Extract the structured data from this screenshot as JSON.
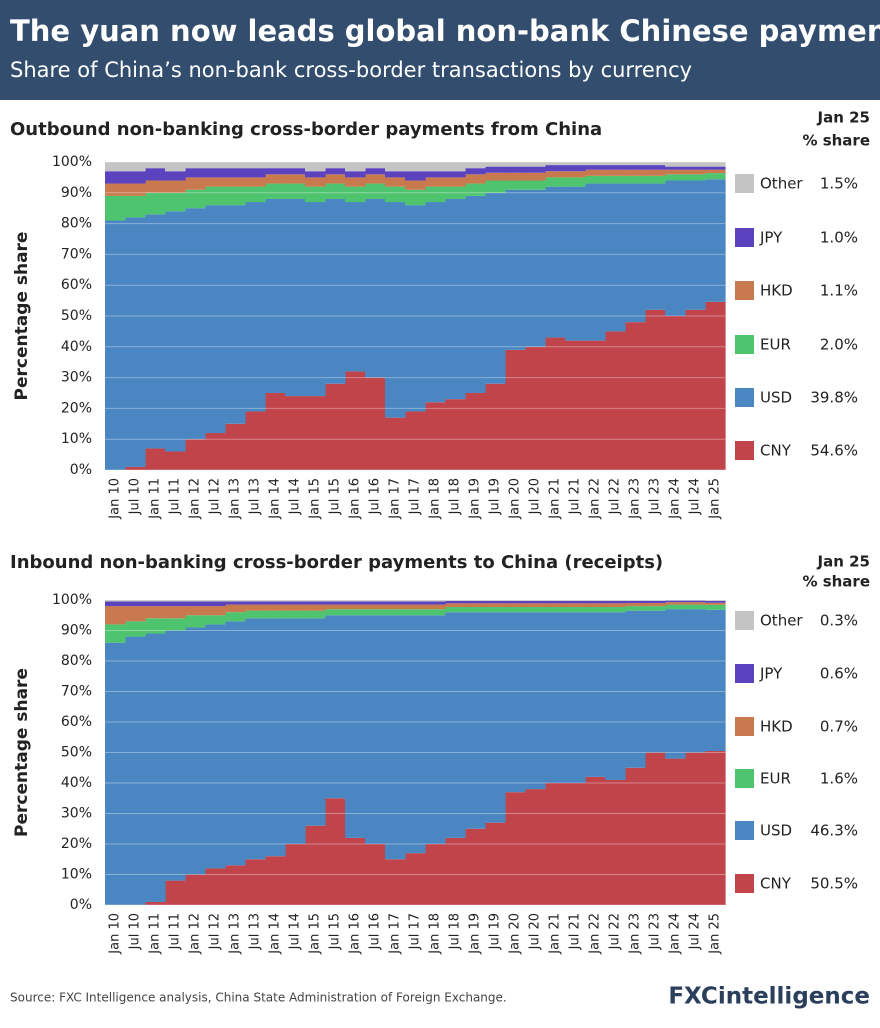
{
  "header": {
    "title": "The yuan now leads global non-bank Chinese payments",
    "subtitle": "Share of China’s non-bank cross-border transactions by currency"
  },
  "footer": {
    "source": "Source: FXC Intelligence analysis, China State Administration of Foreign Exchange.",
    "logo": "FXCintelligence"
  },
  "chart_data": [
    {
      "type": "stacked-bar",
      "title": "Outbound non-banking cross-border payments from China",
      "legend_header": [
        "Jan 25",
        "% share"
      ],
      "y_label": "Percentage share",
      "categories": [
        "Jan 10",
        "Jul 10",
        "Jan 11",
        "Jul 11",
        "Jan 12",
        "Jul 12",
        "Jan 13",
        "Jul 13",
        "Jan 14",
        "Jul 14",
        "Jan 15",
        "Jul 15",
        "Jan 16",
        "Jul 16",
        "Jan 17",
        "Jul 17",
        "Jan 18",
        "Jul 18",
        "Jan 19",
        "Jul 19",
        "Jan 20",
        "Jul 20",
        "Jan 21",
        "Jul 21",
        "Jan 22",
        "Jul 22",
        "Jan 23",
        "Jul 23",
        "Jan 24",
        "Jul 24",
        "Jan 25"
      ],
      "ylim": [
        0,
        100
      ],
      "yticks": [
        {
          "value": 0,
          "label": "0%"
        },
        {
          "value": 10,
          "label": "10%"
        },
        {
          "value": 20,
          "label": "20%"
        },
        {
          "value": 30,
          "label": "30%"
        },
        {
          "value": 40,
          "label": "40%"
        },
        {
          "value": 50,
          "label": "50%"
        },
        {
          "value": 60,
          "label": "60%"
        },
        {
          "value": 70,
          "label": "70%"
        },
        {
          "value": 80,
          "label": "80%"
        },
        {
          "value": 90,
          "label": "90%"
        },
        {
          "value": 100,
          "label": "100%"
        }
      ],
      "series": [
        {
          "name": "CNY",
          "color": "#c0444a",
          "share": {
            "value": 54.6,
            "label": "54.6%"
          },
          "values": [
            0,
            1,
            7,
            6,
            10,
            12,
            15,
            19,
            25,
            24,
            24,
            28,
            32,
            30,
            17,
            19,
            22,
            23,
            25,
            28,
            39,
            40,
            43,
            42,
            42,
            45,
            48,
            52,
            50,
            52,
            54.6
          ]
        },
        {
          "name": "USD",
          "color": "#4a86c2",
          "share": {
            "value": 39.8,
            "label": "39.8%"
          },
          "values": [
            81,
            81,
            76,
            78,
            75,
            74,
            71,
            68,
            63,
            64,
            63,
            60,
            55,
            58,
            70,
            67,
            65,
            65,
            64,
            62,
            52,
            51,
            49,
            50,
            51,
            48,
            45,
            41,
            44,
            42,
            39.8
          ]
        },
        {
          "name": "EUR",
          "color": "#4ec46e",
          "share": {
            "value": 2.0,
            "label": "2.0%"
          },
          "values": [
            8,
            7,
            7,
            6,
            6,
            6,
            6,
            5,
            5,
            5,
            5,
            5,
            5,
            5,
            5,
            5,
            5,
            4,
            4,
            4,
            3,
            3,
            3,
            3,
            2.5,
            2.5,
            2.5,
            2.5,
            2,
            2,
            2.0
          ]
        },
        {
          "name": "HKD",
          "color": "#c87a4e",
          "share": {
            "value": 1.1,
            "label": "1.1%"
          },
          "values": [
            4,
            4,
            4,
            4,
            4,
            3,
            3,
            3,
            3,
            3,
            3,
            3,
            3,
            3,
            3,
            3,
            3,
            3,
            3,
            2.5,
            2.5,
            2.5,
            2,
            2,
            2,
            2,
            2,
            2,
            1.5,
            1.5,
            1.1
          ]
        },
        {
          "name": "JPY",
          "color": "#5b43c0",
          "share": {
            "value": 1.0,
            "label": "1.0%"
          },
          "values": [
            4,
            4,
            4,
            3,
            3,
            3,
            3,
            3,
            2,
            2,
            2,
            2,
            2,
            2,
            2,
            3,
            2,
            2,
            2,
            2,
            2,
            2,
            2,
            2,
            1.5,
            1.5,
            1.5,
            1.5,
            1,
            1,
            1.0
          ]
        },
        {
          "name": "Other",
          "color": "#c4c4c4",
          "share": {
            "value": 1.5,
            "label": "1.5%"
          },
          "values": [
            3,
            3,
            2,
            3,
            2,
            2,
            2,
            2,
            2,
            2,
            3,
            2,
            3,
            2,
            3,
            3,
            3,
            3,
            2,
            1.5,
            1.5,
            1.5,
            1,
            1,
            1,
            1,
            1,
            1,
            1.5,
            1.5,
            1.5
          ]
        }
      ]
    },
    {
      "type": "stacked-bar",
      "title": "Inbound non-banking cross-border payments to China (receipts)",
      "legend_header": [
        "Jan 25",
        "% share"
      ],
      "y_label": "Percentage share",
      "categories": [
        "Jan 10",
        "Jul 10",
        "Jan 11",
        "Jul 11",
        "Jan 12",
        "Jul 12",
        "Jan 13",
        "Jul 13",
        "Jan 14",
        "Jul 14",
        "Jan 15",
        "Jul 15",
        "Jan 16",
        "Jul 16",
        "Jan 17",
        "Jul 17",
        "Jan 18",
        "Jul 18",
        "Jan 19",
        "Jul 19",
        "Jan 20",
        "Jul 20",
        "Jan 21",
        "Jul 21",
        "Jan 22",
        "Jul 22",
        "Jan 23",
        "Jul 23",
        "Jan 24",
        "Jul 24",
        "Jan 25"
      ],
      "ylim": [
        0,
        100
      ],
      "yticks": [
        {
          "value": 0,
          "label": "0%"
        },
        {
          "value": 10,
          "label": "10%"
        },
        {
          "value": 20,
          "label": "20%"
        },
        {
          "value": 30,
          "label": "30%"
        },
        {
          "value": 40,
          "label": "40%"
        },
        {
          "value": 50,
          "label": "50%"
        },
        {
          "value": 60,
          "label": "60%"
        },
        {
          "value": 70,
          "label": "70%"
        },
        {
          "value": 80,
          "label": "80%"
        },
        {
          "value": 90,
          "label": "90%"
        },
        {
          "value": 100,
          "label": "100%"
        }
      ],
      "series": [
        {
          "name": "CNY",
          "color": "#c0444a",
          "share": {
            "value": 50.5,
            "label": "50.5%"
          },
          "values": [
            0,
            0,
            1,
            8,
            10,
            12,
            13,
            15,
            16,
            20,
            26,
            35,
            22,
            20,
            15,
            17,
            20,
            22,
            25,
            27,
            37,
            38,
            40,
            40,
            42,
            41,
            45,
            50,
            48,
            50,
            50.5
          ]
        },
        {
          "name": "USD",
          "color": "#4a86c2",
          "share": {
            "value": 46.3,
            "label": "46.3%"
          },
          "values": [
            86,
            88,
            88,
            82,
            81,
            80,
            80,
            79,
            78,
            74,
            68,
            60,
            73,
            75,
            80,
            78,
            75,
            74,
            71,
            69,
            59,
            58,
            56,
            56,
            54,
            55,
            51.5,
            46.5,
            49,
            47,
            46.3
          ]
        },
        {
          "name": "EUR",
          "color": "#4ec46e",
          "share": {
            "value": 1.6,
            "label": "1.6%"
          },
          "values": [
            6,
            5,
            5,
            4,
            4,
            3,
            3,
            2.5,
            2.5,
            2.5,
            2.5,
            2,
            2,
            2,
            2,
            2,
            2,
            1.7,
            1.7,
            1.7,
            1.7,
            1.7,
            1.7,
            1.7,
            1.7,
            1.7,
            1.5,
            1.5,
            1.5,
            1.5,
            1.6
          ]
        },
        {
          "name": "HKD",
          "color": "#c87a4e",
          "share": {
            "value": 0.7,
            "label": "0.7%"
          },
          "values": [
            6,
            5,
            4,
            4,
            3,
            3,
            2.5,
            2,
            2,
            2,
            2,
            1.5,
            1.5,
            1.5,
            1.5,
            1.5,
            1.5,
            1.2,
            1.2,
            1.2,
            1.2,
            1.2,
            1.2,
            1.2,
            1.2,
            1.2,
            1,
            1,
            0.8,
            0.8,
            0.7
          ]
        },
        {
          "name": "JPY",
          "color": "#5b43c0",
          "share": {
            "value": 0.6,
            "label": "0.6%"
          },
          "values": [
            1.5,
            1.5,
            1.5,
            1.5,
            1.5,
            1.5,
            1,
            1,
            1,
            1,
            1,
            1,
            1,
            1,
            1,
            1,
            1,
            0.8,
            0.8,
            0.8,
            0.8,
            0.8,
            0.8,
            0.8,
            0.8,
            0.8,
            0.7,
            0.7,
            0.5,
            0.5,
            0.6
          ]
        },
        {
          "name": "Other",
          "color": "#c4c4c4",
          "share": {
            "value": 0.3,
            "label": "0.3%"
          },
          "values": [
            0.5,
            0.5,
            0.5,
            0.5,
            0.5,
            0.5,
            0.5,
            0.5,
            0.5,
            0.5,
            0.5,
            0.5,
            0.5,
            0.5,
            0.5,
            0.5,
            0.5,
            0.3,
            0.3,
            0.3,
            0.3,
            0.3,
            0.3,
            0.3,
            0.3,
            0.3,
            0.3,
            0.3,
            0.2,
            0.2,
            0.3
          ]
        }
      ]
    }
  ]
}
